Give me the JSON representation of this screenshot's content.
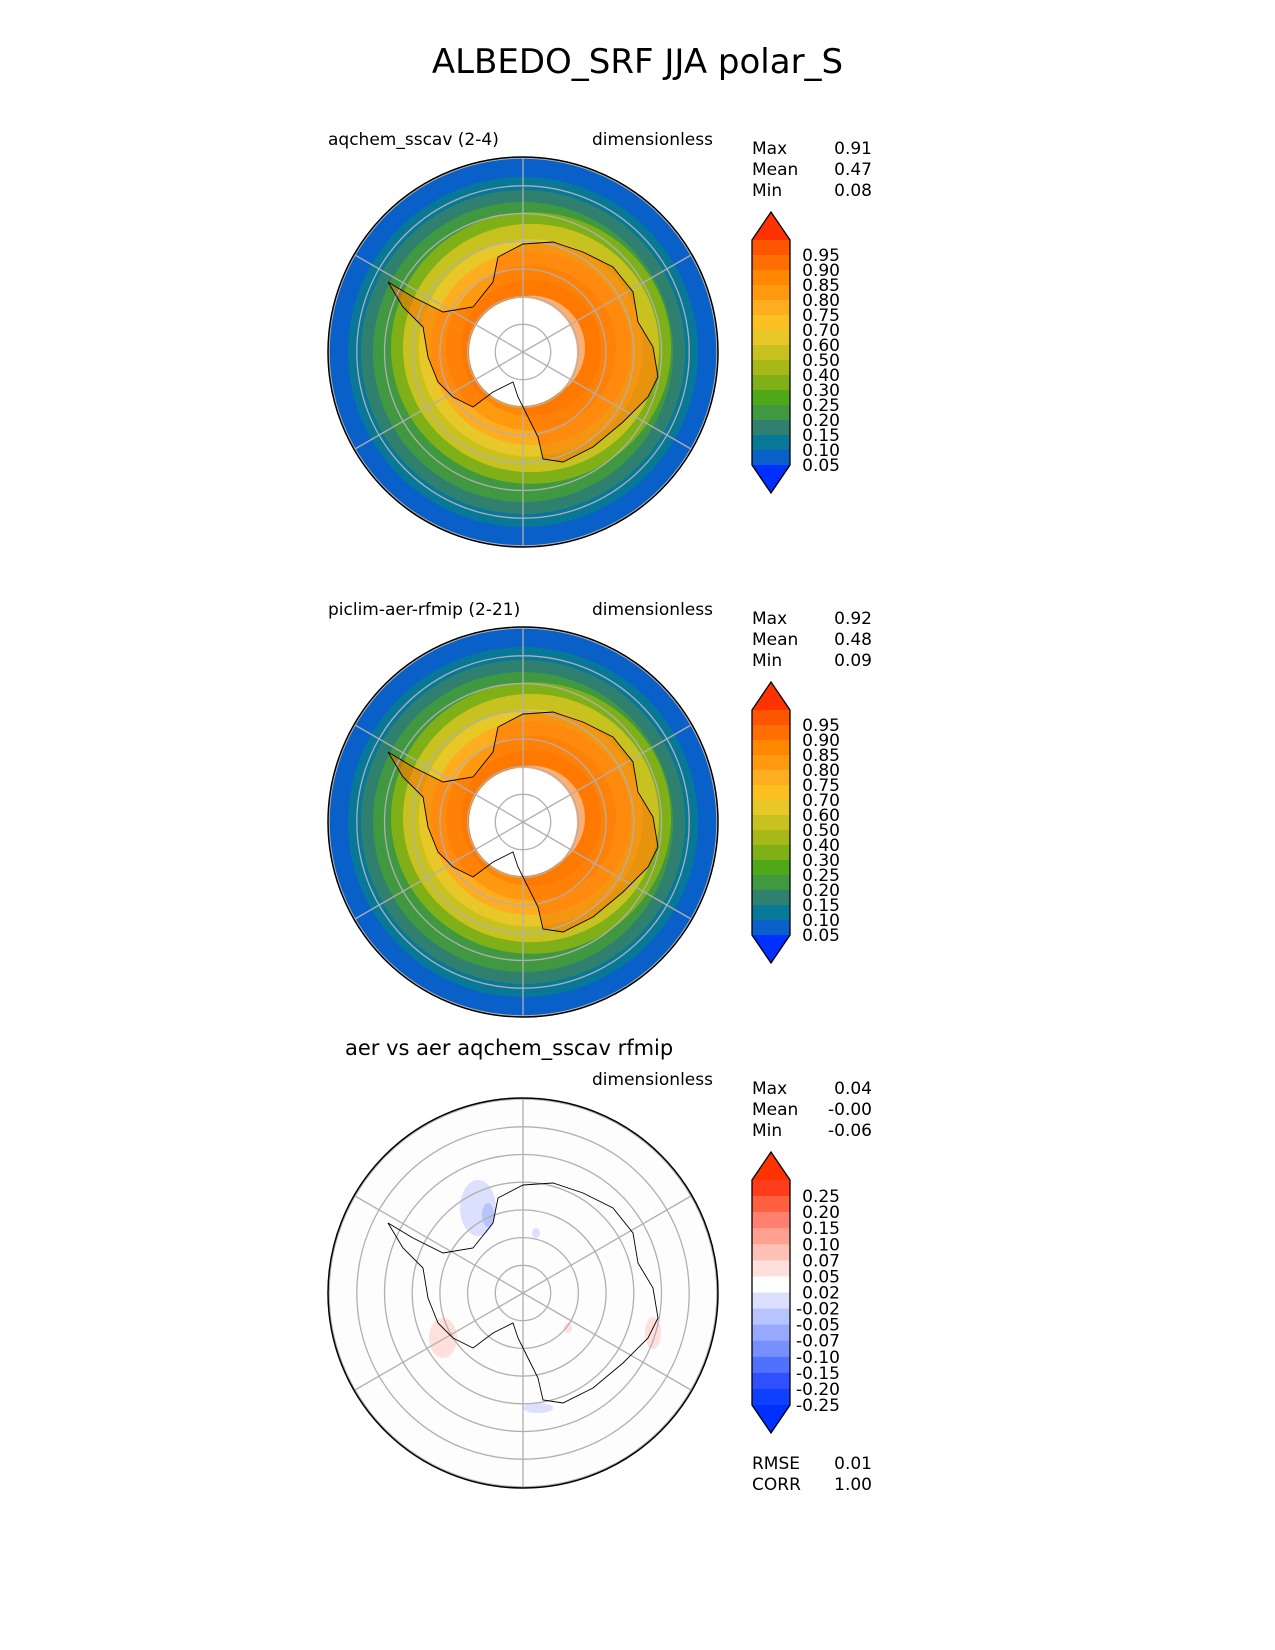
{
  "title": "ALBEDO_SRF JJA polar_S",
  "panels": [
    {
      "left_title": "aqchem_sscav (2-4)",
      "right_title": "dimensionless",
      "stats": {
        "max_label": "Max",
        "max": "0.91",
        "mean_label": "Mean",
        "mean": "0.47",
        "min_label": "Min",
        "min": "0.08"
      }
    },
    {
      "left_title": "piclim-aer-rfmip (2-21)",
      "right_title": "dimensionless",
      "stats": {
        "max_label": "Max",
        "max": "0.92",
        "mean_label": "Mean",
        "mean": "0.48",
        "min_label": "Min",
        "min": "0.09"
      }
    },
    {
      "center_title": "aer vs aer aqchem_sscav rfmip",
      "right_title": "dimensionless",
      "stats": {
        "max_label": "Max",
        "max": "0.04",
        "mean_label": "Mean",
        "mean": "-0.00",
        "min_label": "Min",
        "min": "-0.06"
      },
      "extra": {
        "rmse_label": "RMSE",
        "rmse": "0.01",
        "corr_label": "CORR",
        "corr": "1.00"
      }
    }
  ],
  "chart_data": [
    {
      "type": "heatmap",
      "projection": "polar stereographic (south)",
      "title": "aqchem_sscav (2-4)",
      "units": "dimensionless",
      "levels": [
        "0.95",
        "0.90",
        "0.85",
        "0.80",
        "0.75",
        "0.70",
        "0.60",
        "0.50",
        "0.40",
        "0.30",
        "0.25",
        "0.20",
        "0.15",
        "0.10",
        "0.05"
      ],
      "colors": [
        "#ff3300",
        "#ff5500",
        "#ff6e00",
        "#ff8800",
        "#ff9a10",
        "#ffad20",
        "#fcc020",
        "#e8c828",
        "#c8c220",
        "#a8b818",
        "#80b018",
        "#4ea818",
        "#409840",
        "#308070",
        "#087898",
        "#0860c8",
        "#0030ff"
      ],
      "max": 0.91,
      "mean": 0.47,
      "min": 0.08
    },
    {
      "type": "heatmap",
      "projection": "polar stereographic (south)",
      "title": "piclim-aer-rfmip (2-21)",
      "units": "dimensionless",
      "max": 0.92,
      "mean": 0.48,
      "min": 0.09
    },
    {
      "type": "heatmap",
      "projection": "polar stereographic (south)",
      "title": "aer vs aer aqchem_sscav rfmip",
      "units": "dimensionless",
      "levels": [
        "0.25",
        "0.20",
        "0.15",
        "0.10",
        "0.07",
        "0.05",
        "0.02",
        "-0.02",
        "-0.05",
        "-0.07",
        "-0.10",
        "-0.15",
        "-0.20",
        "-0.25"
      ],
      "colors": [
        "#ff3300",
        "#ff3c1c",
        "#ff6040",
        "#ff8070",
        "#ffa090",
        "#ffc0b8",
        "#ffe0dc",
        "#ffffff",
        "#dce0ff",
        "#b8c4ff",
        "#98a8ff",
        "#7890ff",
        "#5070ff",
        "#3050ff",
        "#1040ff",
        "#0030ff"
      ],
      "max": 0.04,
      "mean": -0.0,
      "min": -0.06,
      "rmse": 0.01,
      "corr": 1.0
    }
  ]
}
